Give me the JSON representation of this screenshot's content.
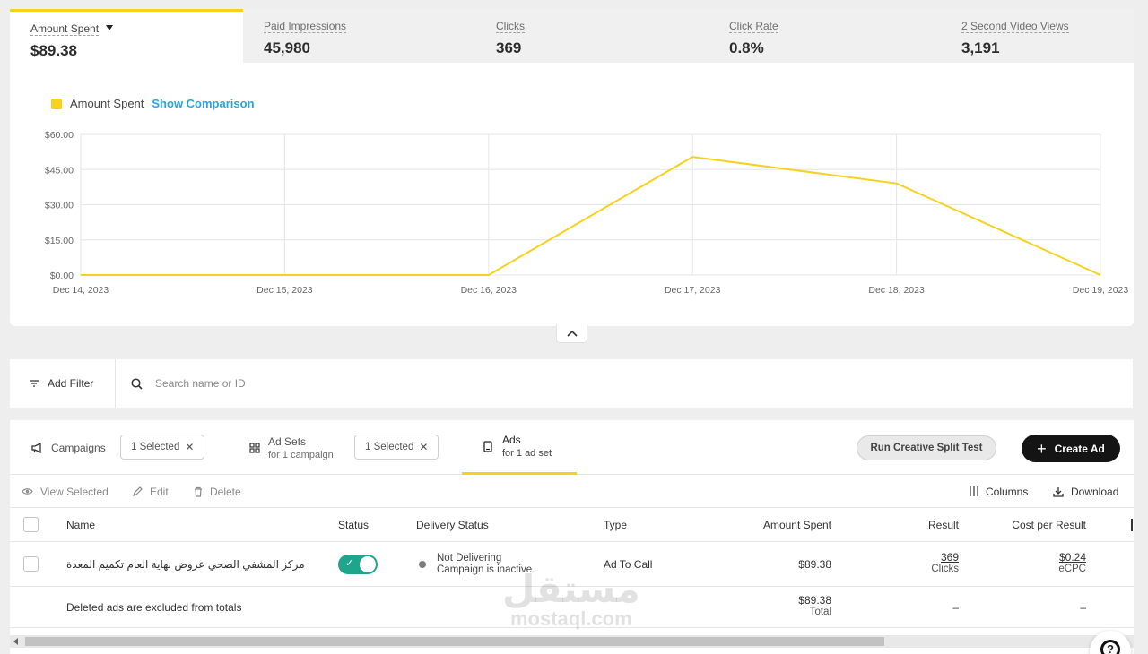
{
  "metrics": [
    {
      "label": "Amount Spent",
      "value": "$89.38",
      "active": true
    },
    {
      "label": "Paid Impressions",
      "value": "45,980"
    },
    {
      "label": "Clicks",
      "value": "369"
    },
    {
      "label": "Click Rate",
      "value": "0.8%"
    },
    {
      "label": "2 Second Video Views",
      "value": "3,191"
    }
  ],
  "legend": {
    "series_name": "Amount Spent",
    "show_comparison": "Show Comparison"
  },
  "chart_data": {
    "type": "line",
    "x": [
      "Dec 14, 2023",
      "Dec 15, 2023",
      "Dec 16, 2023",
      "Dec 17, 2023",
      "Dec 18, 2023",
      "Dec 19, 2023"
    ],
    "series": [
      {
        "name": "Amount Spent",
        "values": [
          0,
          0,
          0,
          50.4,
          39.1,
          0
        ]
      }
    ],
    "ylim": [
      0,
      60
    ],
    "yticks": [
      "$0.00",
      "$15.00",
      "$30.00",
      "$45.00",
      "$60.00"
    ],
    "ytick_values": [
      0,
      15,
      30,
      45,
      60
    ],
    "grid": true,
    "color": "#f6d21f"
  },
  "filter": {
    "add_filter": "Add Filter",
    "search_placeholder": "Search name or ID"
  },
  "levels": {
    "campaigns": "Campaigns",
    "campaigns_chip": "1 Selected",
    "adsets": "Ad Sets",
    "adsets_sub": "for 1 campaign",
    "adsets_chip": "1 Selected",
    "ads": "Ads",
    "ads_sub": "for 1 ad set",
    "split_test": "Run Creative Split Test",
    "create_ad": "Create Ad"
  },
  "actions": {
    "view": "View Selected",
    "edit": "Edit",
    "delete": "Delete",
    "columns": "Columns",
    "download": "Download"
  },
  "columns": {
    "name": "Name",
    "status": "Status",
    "delivery": "Delivery Status",
    "type": "Type",
    "amount": "Amount Spent",
    "result": "Result",
    "cpr": "Cost per Result"
  },
  "row": {
    "name": "مركز المشفي الصحي عروض نهاية العام تكميم المعدة",
    "status_on": true,
    "delivery_line1": "Not Delivering",
    "delivery_line2": "Campaign is inactive",
    "type": "Ad To Call",
    "amount": "$89.38",
    "result": "369",
    "result_unit": "Clicks",
    "cpr": "$0.24",
    "cpr_unit": "eCPC"
  },
  "totals": {
    "note": "Deleted ads are excluded from totals",
    "amount": "$89.38",
    "amount_label": "Total",
    "result": "–",
    "cpr": "–"
  },
  "watermark": {
    "arabic": "مستقل",
    "latin": "mostaql.com"
  },
  "help": "?"
}
